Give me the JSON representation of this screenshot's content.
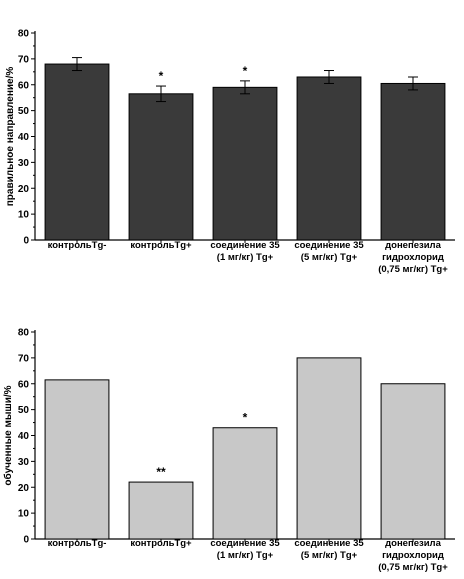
{
  "chart_data": [
    {
      "type": "bar",
      "ylabel": "правильное направление/%",
      "xlabel": "",
      "ylim": [
        0,
        80
      ],
      "yticks": [
        0,
        10,
        20,
        30,
        40,
        50,
        60,
        70,
        80
      ],
      "bar_color": "#3a3a3a",
      "error_bars": true,
      "categories": [
        [
          "контрольTg-"
        ],
        [
          "контрольTg+"
        ],
        [
          "соединение 35",
          "(1 мг/кг) Tg+"
        ],
        [
          "соединение 35",
          "(5 мг/кг) Tg+"
        ],
        [
          "донепезила",
          "гидрохлорид",
          "(0,75 мг/кг) Tg+"
        ]
      ],
      "values": [
        68,
        56.5,
        59,
        63,
        60.5
      ],
      "errors": [
        2.5,
        3,
        2.5,
        2.5,
        2.5
      ],
      "annotations": [
        "",
        "*",
        "*",
        "",
        ""
      ]
    },
    {
      "type": "bar",
      "ylabel": "обученные мыши/%",
      "xlabel": "",
      "ylim": [
        0,
        80
      ],
      "yticks": [
        0,
        10,
        20,
        30,
        40,
        50,
        60,
        70,
        80
      ],
      "bar_color": "#c8c8c8",
      "error_bars": false,
      "categories": [
        [
          "контрольTg-"
        ],
        [
          "контрольTg+"
        ],
        [
          "соединение 35",
          "(1 мг/кг) Tg+"
        ],
        [
          "соединение 35",
          "(5 мг/кг) Tg+"
        ],
        [
          "донепезила",
          "гидрохлорид",
          "(0,75 мг/кг) Tg+"
        ]
      ],
      "values": [
        61.5,
        22,
        43,
        70,
        60
      ],
      "annotations": [
        "",
        "**",
        "*",
        "",
        ""
      ]
    }
  ]
}
